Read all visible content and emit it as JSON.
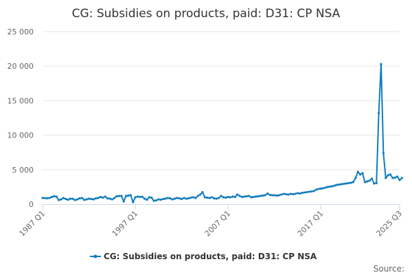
{
  "chart_data": {
    "type": "line",
    "title": "CG: Subsidies on products, paid: D31: CP NSA",
    "xlabel": "",
    "ylabel": "",
    "ylim": [
      0,
      25000
    ],
    "y_ticks": [
      0,
      5000,
      10000,
      15000,
      20000,
      25000
    ],
    "y_tick_labels": [
      "0",
      "5 000",
      "10 000",
      "15 000",
      "20 000",
      "25 000"
    ],
    "x_ticks": [
      "1987 Q1",
      "1997 Q1",
      "2007 Q1",
      "2017 Q1",
      "2025 Q3"
    ],
    "x_tick_quarter_index": [
      0,
      40,
      80,
      120,
      154
    ],
    "grid": "horizontal",
    "legend_position": "bottom",
    "series": [
      {
        "name": "CG: Subsidies on products, paid: D31: CP NSA",
        "color": "#0f7bbd",
        "quarters_start": "1987 Q1",
        "values": [
          900,
          880,
          860,
          900,
          1050,
          1150,
          1080,
          600,
          700,
          900,
          750,
          650,
          800,
          780,
          600,
          700,
          850,
          900,
          620,
          700,
          800,
          750,
          700,
          850,
          900,
          1050,
          950,
          1100,
          850,
          800,
          700,
          900,
          1150,
          1180,
          1200,
          400,
          1200,
          1250,
          1300,
          300,
          1000,
          1100,
          1050,
          1080,
          800,
          650,
          1000,
          950,
          500,
          550,
          700,
          650,
          750,
          800,
          900,
          850,
          700,
          800,
          900,
          850,
          750,
          900,
          800,
          850,
          950,
          1000,
          900,
          1200,
          1400,
          1750,
          1000,
          950,
          900,
          1000,
          850,
          800,
          900,
          1200,
          1000,
          950,
          1050,
          1000,
          1100,
          1050,
          1400,
          1200,
          1050,
          1100,
          1150,
          1200,
          1000,
          1050,
          1100,
          1150,
          1200,
          1250,
          1300,
          1550,
          1350,
          1300,
          1300,
          1250,
          1300,
          1400,
          1500,
          1450,
          1400,
          1500,
          1450,
          1500,
          1600,
          1550,
          1650,
          1700,
          1750,
          1800,
          1850,
          1900,
          2100,
          2200,
          2250,
          2300,
          2400,
          2500,
          2550,
          2600,
          2700,
          2800,
          2850,
          2900,
          2950,
          3000,
          3050,
          3100,
          3200,
          3800,
          4700,
          4300,
          4500,
          3200,
          3300,
          3400,
          3700,
          3000,
          3050,
          13200,
          20300,
          7400,
          3800,
          4200,
          4300,
          3800,
          3850,
          4000,
          3500,
          3800
        ]
      }
    ],
    "source_label": "Source:"
  }
}
